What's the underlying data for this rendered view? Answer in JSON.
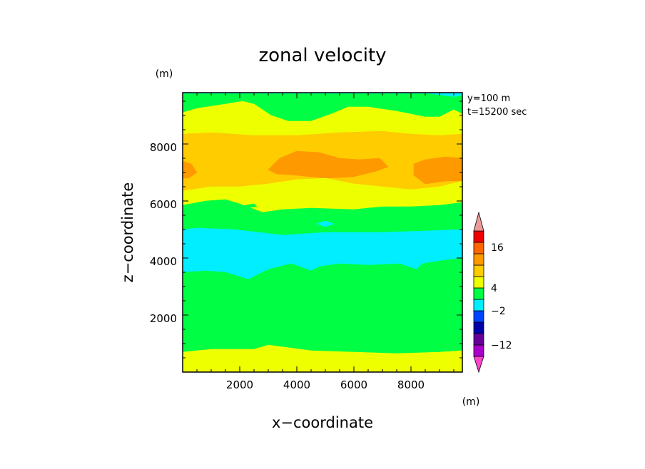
{
  "chart_data": {
    "type": "contour",
    "title": "zonal velocity",
    "xlabel": "x−coordinate",
    "ylabel": "z−coordinate",
    "y_unit_label": "(m)",
    "x_ticks": [
      "2000",
      "4000",
      "6000",
      "8000"
    ],
    "y_ticks": [
      "2000",
      "4000",
      "6000",
      "8000"
    ],
    "xlim": [
      0,
      9800
    ],
    "ylim": [
      0,
      9800
    ],
    "info": [
      "y=100  m",
      "t=15200  sec"
    ],
    "colorbar": {
      "unit_label": "(m)",
      "labels": [
        "16",
        "4",
        "−2",
        "−12"
      ],
      "colors": [
        "#ff44cc",
        "#aa00cc",
        "#660099",
        "#0000aa",
        "#0044ff",
        "#00eeff",
        "#00ff44",
        "#eeff00",
        "#ffcc00",
        "#ff9900",
        "#ff6600",
        "#ee0000",
        "#ee9999"
      ]
    },
    "regions": [
      {
        "name": "cyan_top",
        "color": "#00eeff",
        "boundary": [
          [
            0,
            9800
          ],
          [
            9800,
            9800
          ],
          [
            9800,
            9700
          ],
          [
            9500,
            9650
          ],
          [
            9100,
            9700
          ],
          [
            8600,
            9760
          ],
          [
            0,
            9760
          ]
        ]
      },
      {
        "name": "green_top",
        "color": "#00ff44",
        "boundary": [
          [
            0,
            9760
          ],
          [
            8600,
            9760
          ],
          [
            9100,
            9700
          ],
          [
            9500,
            9650
          ],
          [
            9800,
            9700
          ],
          [
            9800,
            9050
          ],
          [
            9500,
            9200
          ],
          [
            9000,
            8950
          ],
          [
            8500,
            8950
          ],
          [
            7500,
            9150
          ],
          [
            6500,
            9300
          ],
          [
            5800,
            9300
          ],
          [
            5200,
            9050
          ],
          [
            4500,
            8800
          ],
          [
            3700,
            8800
          ],
          [
            3100,
            9000
          ],
          [
            2500,
            9400
          ],
          [
            2100,
            9500
          ],
          [
            1500,
            9400
          ],
          [
            500,
            9250
          ],
          [
            0,
            9100
          ]
        ]
      },
      {
        "name": "yellow_upper",
        "color": "#eeff00",
        "boundary": [
          [
            0,
            9100
          ],
          [
            500,
            9250
          ],
          [
            1500,
            9400
          ],
          [
            2100,
            9500
          ],
          [
            2500,
            9400
          ],
          [
            3100,
            9000
          ],
          [
            3700,
            8800
          ],
          [
            4500,
            8800
          ],
          [
            5200,
            9050
          ],
          [
            5800,
            9300
          ],
          [
            6500,
            9300
          ],
          [
            7500,
            9150
          ],
          [
            8500,
            8950
          ],
          [
            9000,
            8950
          ],
          [
            9500,
            9200
          ],
          [
            9800,
            9050
          ],
          [
            9800,
            8350
          ],
          [
            9000,
            8300
          ],
          [
            8000,
            8350
          ],
          [
            7000,
            8450
          ],
          [
            5500,
            8400
          ],
          [
            4000,
            8300
          ],
          [
            2500,
            8300
          ],
          [
            1000,
            8400
          ],
          [
            0,
            8350
          ]
        ]
      },
      {
        "name": "orange_upper",
        "color": "#ffcc00",
        "boundary": [
          [
            0,
            8350
          ],
          [
            1000,
            8400
          ],
          [
            2500,
            8300
          ],
          [
            4000,
            8300
          ],
          [
            5500,
            8400
          ],
          [
            7000,
            8450
          ],
          [
            8000,
            8350
          ],
          [
            9000,
            8300
          ],
          [
            9800,
            8350
          ],
          [
            9800,
            6700
          ],
          [
            9000,
            6500
          ],
          [
            8000,
            6400
          ],
          [
            7000,
            6500
          ],
          [
            6000,
            6600
          ],
          [
            5000,
            6800
          ],
          [
            4000,
            6750
          ],
          [
            3000,
            6600
          ],
          [
            2000,
            6500
          ],
          [
            1000,
            6500
          ],
          [
            0,
            6350
          ]
        ]
      },
      {
        "name": "dark_orange_left",
        "color": "#ff9900",
        "boundary": [
          [
            0,
            7400
          ],
          [
            300,
            7300
          ],
          [
            500,
            7000
          ],
          [
            200,
            6800
          ],
          [
            0,
            6800
          ]
        ]
      },
      {
        "name": "dark_orange_center",
        "color": "#ff9900",
        "boundary": [
          [
            3000,
            7100
          ],
          [
            3400,
            7500
          ],
          [
            4000,
            7750
          ],
          [
            4800,
            7700
          ],
          [
            5500,
            7500
          ],
          [
            6200,
            7450
          ],
          [
            6900,
            7500
          ],
          [
            7200,
            7200
          ],
          [
            6800,
            7050
          ],
          [
            6000,
            6850
          ],
          [
            5000,
            6800
          ],
          [
            4000,
            6900
          ],
          [
            3300,
            6950
          ]
        ]
      },
      {
        "name": "dark_orange_right",
        "color": "#ff9900",
        "boundary": [
          [
            8100,
            7300
          ],
          [
            8500,
            7450
          ],
          [
            9200,
            7550
          ],
          [
            9800,
            7500
          ],
          [
            9800,
            6700
          ],
          [
            9200,
            6700
          ],
          [
            8500,
            6600
          ],
          [
            8100,
            6900
          ]
        ]
      },
      {
        "name": "yellow_middle",
        "color": "#eeff00",
        "boundary": [
          [
            0,
            6350
          ],
          [
            1000,
            6500
          ],
          [
            2000,
            6500
          ],
          [
            3000,
            6600
          ],
          [
            4000,
            6750
          ],
          [
            5000,
            6800
          ],
          [
            6000,
            6600
          ],
          [
            7000,
            6500
          ],
          [
            8000,
            6400
          ],
          [
            9000,
            6500
          ],
          [
            9800,
            6700
          ],
          [
            9800,
            5950
          ],
          [
            9000,
            5850
          ],
          [
            8000,
            5800
          ],
          [
            7000,
            5800
          ],
          [
            6000,
            5700
          ],
          [
            4500,
            5750
          ],
          [
            3500,
            5700
          ],
          [
            2800,
            5600
          ],
          [
            2000,
            5900
          ],
          [
            1500,
            6050
          ],
          [
            800,
            6000
          ],
          [
            0,
            5850
          ]
        ]
      },
      {
        "name": "green_middle",
        "color": "#00ff44",
        "boundary": [
          [
            0,
            5850
          ],
          [
            800,
            6000
          ],
          [
            1500,
            6050
          ],
          [
            2000,
            5900
          ],
          [
            2800,
            5600
          ],
          [
            3500,
            5700
          ],
          [
            4500,
            5750
          ],
          [
            6000,
            5700
          ],
          [
            7000,
            5800
          ],
          [
            8000,
            5800
          ],
          [
            9000,
            5850
          ],
          [
            9800,
            5950
          ],
          [
            9800,
            5000
          ],
          [
            8500,
            4950
          ],
          [
            7000,
            4900
          ],
          [
            5000,
            4900
          ],
          [
            3500,
            4800
          ],
          [
            1800,
            5000
          ],
          [
            500,
            5050
          ],
          [
            0,
            5000
          ]
        ]
      },
      {
        "name": "green_speck",
        "color": "#00ff44",
        "boundary": [
          [
            2200,
            5850
          ],
          [
            2500,
            5900
          ],
          [
            2600,
            5800
          ],
          [
            2300,
            5780
          ]
        ]
      },
      {
        "name": "cyan_middle",
        "color": "#00eeff",
        "boundary": [
          [
            0,
            5000
          ],
          [
            500,
            5050
          ],
          [
            1800,
            5000
          ],
          [
            3500,
            4800
          ],
          [
            5000,
            4900
          ],
          [
            7000,
            4900
          ],
          [
            8500,
            4950
          ],
          [
            9800,
            5000
          ],
          [
            9800,
            4000
          ],
          [
            9000,
            3900
          ],
          [
            8400,
            3800
          ],
          [
            8200,
            3600
          ],
          [
            7600,
            3800
          ],
          [
            6500,
            3750
          ],
          [
            5500,
            3800
          ],
          [
            4800,
            3700
          ],
          [
            4500,
            3550
          ],
          [
            3800,
            3800
          ],
          [
            3000,
            3600
          ],
          [
            2300,
            3250
          ],
          [
            1500,
            3500
          ],
          [
            800,
            3550
          ],
          [
            0,
            3500
          ]
        ]
      },
      {
        "name": "cyan_island",
        "color": "#00eeff",
        "boundary": [
          [
            4700,
            5200
          ],
          [
            5000,
            5300
          ],
          [
            5300,
            5200
          ],
          [
            5000,
            5100
          ]
        ]
      },
      {
        "name": "green_lower",
        "color": "#00ff44",
        "boundary": [
          [
            0,
            3500
          ],
          [
            800,
            3550
          ],
          [
            1500,
            3500
          ],
          [
            2300,
            3250
          ],
          [
            3000,
            3600
          ],
          [
            3800,
            3800
          ],
          [
            4500,
            3550
          ],
          [
            4800,
            3700
          ],
          [
            5500,
            3800
          ],
          [
            6500,
            3750
          ],
          [
            7600,
            3800
          ],
          [
            8200,
            3600
          ],
          [
            8400,
            3800
          ],
          [
            9000,
            3900
          ],
          [
            9800,
            4000
          ],
          [
            9800,
            750
          ],
          [
            9000,
            700
          ],
          [
            7500,
            650
          ],
          [
            6000,
            700
          ],
          [
            4500,
            750
          ],
          [
            3000,
            950
          ],
          [
            2500,
            800
          ],
          [
            1000,
            800
          ],
          [
            0,
            700
          ]
        ]
      },
      {
        "name": "yellow_bottom",
        "color": "#eeff00",
        "boundary": [
          [
            0,
            700
          ],
          [
            1000,
            800
          ],
          [
            2500,
            800
          ],
          [
            3000,
            950
          ],
          [
            4500,
            750
          ],
          [
            6000,
            700
          ],
          [
            7500,
            650
          ],
          [
            9000,
            700
          ],
          [
            9800,
            750
          ],
          [
            9800,
            0
          ],
          [
            0,
            0
          ]
        ]
      }
    ]
  }
}
